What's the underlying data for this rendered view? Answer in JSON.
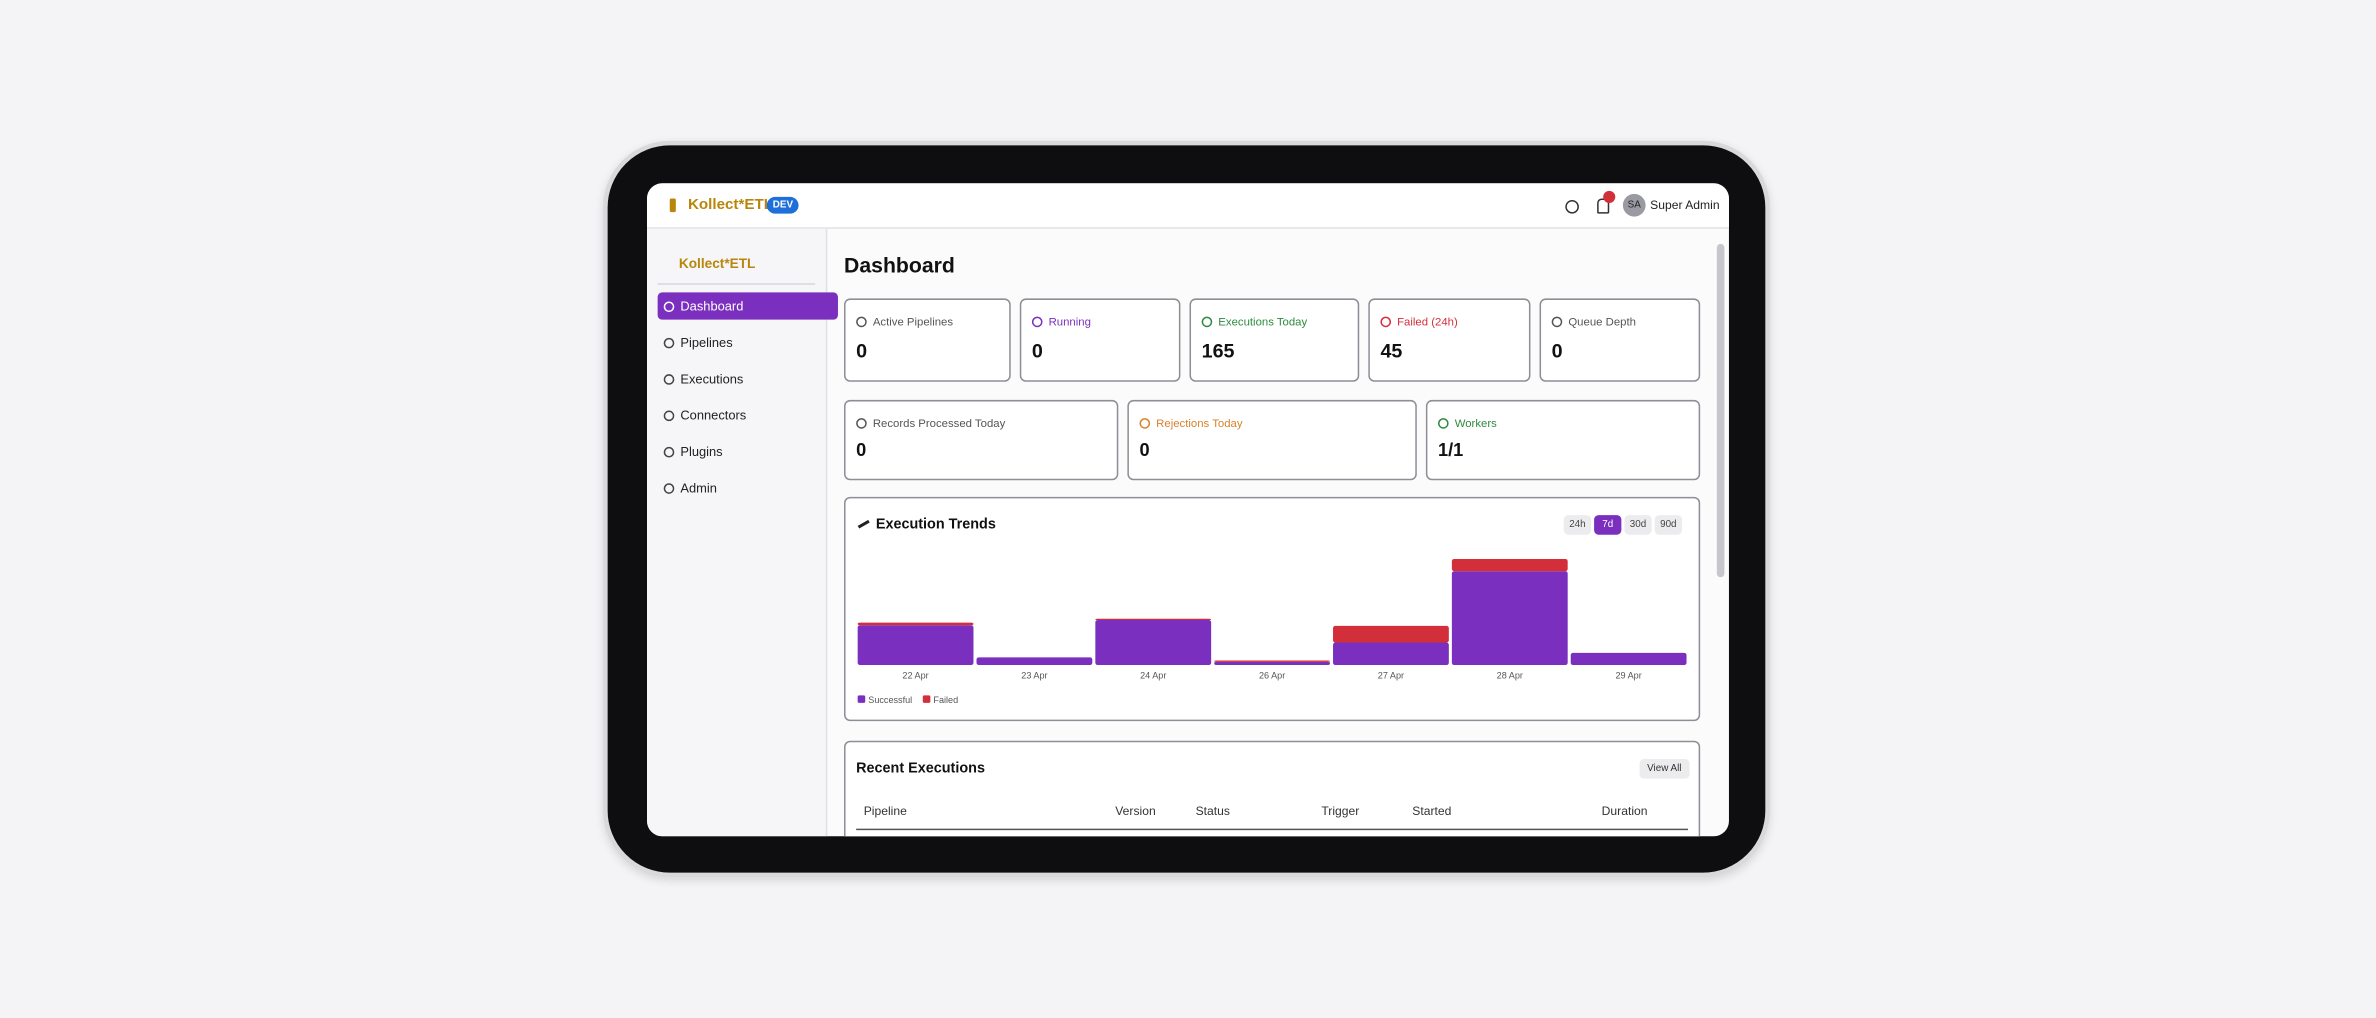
{
  "header": {
    "brand": "Kollect*ETL",
    "env": "DEV",
    "user_initials": "SA",
    "user_name": "Super Admin"
  },
  "sidebar": {
    "brand": "Kollect*ETL",
    "items": [
      "Dashboard",
      "Pipelines",
      "Executions",
      "Connectors",
      "Plugins",
      "Admin"
    ],
    "active": "Dashboard"
  },
  "page_title": "Dashboard",
  "stats_row1": [
    {
      "label": "Active Pipelines",
      "value": 0,
      "color": "#555555"
    },
    {
      "label": "Running",
      "value": 0,
      "color": "#7b2fbe"
    },
    {
      "label": "Executions Today",
      "value": 165,
      "color": "#2e8b3e"
    },
    {
      "label": "Failed (24h)",
      "value": 45,
      "color": "#d32f3a"
    },
    {
      "label": "Queue Depth",
      "value": 0,
      "color": "#555555"
    }
  ],
  "stats_row2": [
    {
      "label": "Records Processed Today",
      "value": 0,
      "color": "#555555"
    },
    {
      "label": "Rejections Today",
      "value": 0,
      "color": "#d9822b"
    },
    {
      "label": "Workers",
      "value": "1/1",
      "color": "#2e8b3e"
    }
  ],
  "chart_data": {
    "type": "bar",
    "stacked": true,
    "title": "Execution Trends",
    "range_options": [
      "24h",
      "7d",
      "30d",
      "90d"
    ],
    "active_range": "7d",
    "categories": [
      "22 Apr",
      "23 Apr",
      "24 Apr",
      "26 Apr",
      "27 Apr",
      "28 Apr",
      "29 Apr"
    ],
    "series": [
      {
        "name": "Successful",
        "color": "#7b2fbe",
        "values": [
          62,
          12,
          70,
          5,
          35,
          146,
          19
        ]
      },
      {
        "name": "Failed",
        "color": "#d32f3a",
        "values": [
          4,
          0,
          2,
          2,
          26,
          19,
          0
        ]
      }
    ]
  },
  "recent": {
    "title": "Recent Executions",
    "action": "View All",
    "columns": [
      "Pipeline",
      "Version",
      "Status",
      "Trigger",
      "Started",
      "Duration"
    ]
  }
}
